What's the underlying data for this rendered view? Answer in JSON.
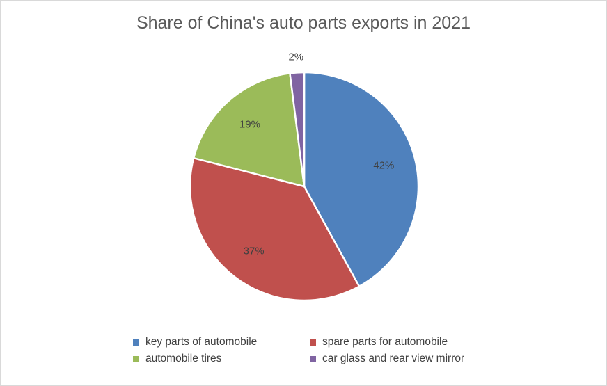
{
  "chart_data": {
    "type": "pie",
    "title": "Share of China's auto parts exports in 2021",
    "series": [
      {
        "name": "key parts of automobile",
        "value": 42,
        "label": "42%",
        "color": "#4F81BD"
      },
      {
        "name": "spare parts for automobile",
        "value": 37,
        "label": "37%",
        "color": "#C0504D"
      },
      {
        "name": "automobile tires",
        "value": 19,
        "label": "19%",
        "color": "#9BBB59"
      },
      {
        "name": "car glass and rear view mirror",
        "value": 2,
        "label": "2%",
        "color": "#8064A2"
      }
    ],
    "legend_position": "bottom",
    "start_angle": "top",
    "direction": "clockwise"
  }
}
